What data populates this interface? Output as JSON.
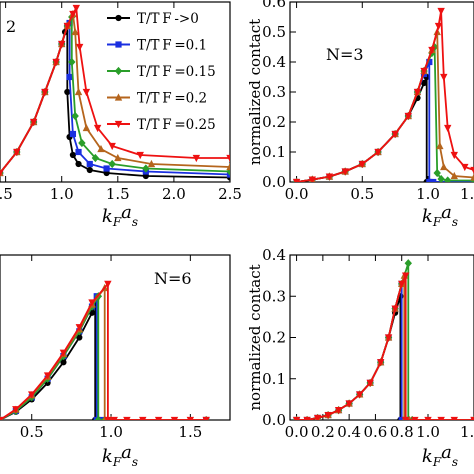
{
  "legend": {
    "entries": [
      {
        "label": "T/T F ->0",
        "color": "#000000",
        "marker": "circle"
      },
      {
        "label": "T/T F =0.1",
        "color": "#1a2fe0",
        "marker": "square"
      },
      {
        "label": "T/T F =0.15",
        "color": "#2a9e2a",
        "marker": "diamond"
      },
      {
        "label": "T/T F =0.2",
        "color": "#b5651d",
        "marker": "triangle-up"
      },
      {
        "label": "T/T F =0.25",
        "color": "#ee1111",
        "marker": "triangle-down"
      }
    ]
  },
  "chart_data": [
    {
      "id": "panel-top-left",
      "type": "line",
      "panel_label": "2",
      "xlabel": "k_F a_s",
      "ylabel": "",
      "xlim": [
        0.45,
        2.5
      ],
      "ylim": [
        0.0,
        0.6
      ],
      "xticks": [
        0.5,
        1.0,
        1.5,
        2.0,
        2.5
      ],
      "xtick_labels": [
        ".5",
        "1.0",
        "1.5",
        "2.0",
        "2.5"
      ],
      "series": [
        {
          "color": "#000000",
          "marker": "circle",
          "x": [
            0.45,
            0.6,
            0.75,
            0.85,
            0.95,
            1.0,
            1.03,
            1.05,
            1.05,
            1.07,
            1.1,
            1.15,
            1.25,
            1.4,
            1.75,
            2.5
          ],
          "y": [
            0.03,
            0.1,
            0.2,
            0.3,
            0.4,
            0.46,
            0.5,
            0.52,
            0.3,
            0.15,
            0.09,
            0.06,
            0.04,
            0.03,
            0.02,
            0.015
          ]
        },
        {
          "color": "#1a2fe0",
          "marker": "square",
          "x": [
            0.45,
            0.6,
            0.75,
            0.85,
            0.95,
            1.0,
            1.05,
            1.07,
            1.07,
            1.1,
            1.15,
            1.25,
            1.4,
            1.75,
            2.5
          ],
          "y": [
            0.03,
            0.1,
            0.2,
            0.3,
            0.4,
            0.46,
            0.52,
            0.53,
            0.35,
            0.16,
            0.1,
            0.06,
            0.045,
            0.035,
            0.025
          ]
        },
        {
          "color": "#2a9e2a",
          "marker": "diamond",
          "x": [
            0.45,
            0.6,
            0.75,
            0.85,
            0.95,
            1.0,
            1.05,
            1.09,
            1.09,
            1.12,
            1.18,
            1.3,
            1.45,
            1.75,
            2.5
          ],
          "y": [
            0.03,
            0.1,
            0.2,
            0.3,
            0.4,
            0.46,
            0.52,
            0.55,
            0.4,
            0.22,
            0.13,
            0.08,
            0.06,
            0.045,
            0.035
          ]
        },
        {
          "color": "#b5651d",
          "marker": "triangle-up",
          "x": [
            0.45,
            0.6,
            0.75,
            0.85,
            0.95,
            1.0,
            1.05,
            1.1,
            1.12,
            1.15,
            1.22,
            1.35,
            1.5,
            1.8,
            2.5
          ],
          "y": [
            0.03,
            0.1,
            0.2,
            0.3,
            0.4,
            0.46,
            0.52,
            0.56,
            0.5,
            0.3,
            0.18,
            0.11,
            0.08,
            0.06,
            0.05
          ]
        },
        {
          "color": "#ee1111",
          "marker": "triangle-down",
          "x": [
            0.45,
            0.6,
            0.75,
            0.85,
            0.95,
            1.0,
            1.05,
            1.1,
            1.13,
            1.16,
            1.22,
            1.32,
            1.45,
            1.7,
            2.2,
            2.5
          ],
          "y": [
            0.03,
            0.1,
            0.2,
            0.3,
            0.4,
            0.46,
            0.52,
            0.56,
            0.58,
            0.45,
            0.3,
            0.18,
            0.12,
            0.09,
            0.08,
            0.08
          ]
        }
      ]
    },
    {
      "id": "panel-top-right",
      "type": "line",
      "panel_label": "N=3",
      "xlabel": "k_F a_s",
      "ylabel": "normalized contact",
      "xlim": [
        -0.05,
        1.35
      ],
      "ylim": [
        0.0,
        0.6
      ],
      "xticks": [
        0.0,
        0.5,
        1.0
      ],
      "xtick_labels": [
        "0.0",
        "0.5",
        "1.0"
      ],
      "extra_tick_text": "1.",
      "yticks": [
        0.0,
        0.1,
        0.2,
        0.3,
        0.4,
        0.5,
        0.6
      ],
      "ytick_labels": [
        "0.0",
        "0.1",
        "0.2",
        "0.3",
        "0.4",
        "0.5",
        "0.6"
      ],
      "series": [
        {
          "color": "#000000",
          "marker": "circle",
          "x": [
            0.0,
            0.12,
            0.25,
            0.37,
            0.5,
            0.62,
            0.75,
            0.85,
            0.92,
            0.97,
            0.99,
            0.99,
            1.02,
            1.35
          ],
          "y": [
            0.0,
            0.008,
            0.018,
            0.035,
            0.06,
            0.1,
            0.16,
            0.22,
            0.28,
            0.33,
            0.35,
            0.0,
            0.0,
            0.0
          ]
        },
        {
          "color": "#1a2fe0",
          "marker": "square",
          "x": [
            0.0,
            0.12,
            0.25,
            0.37,
            0.5,
            0.62,
            0.75,
            0.85,
            0.92,
            0.97,
            1.01,
            1.01,
            1.04,
            1.35
          ],
          "y": [
            0.0,
            0.008,
            0.018,
            0.035,
            0.06,
            0.1,
            0.16,
            0.22,
            0.3,
            0.36,
            0.4,
            0.0,
            0.0,
            0.0
          ]
        },
        {
          "color": "#2a9e2a",
          "marker": "diamond",
          "x": [
            0.0,
            0.12,
            0.25,
            0.37,
            0.5,
            0.62,
            0.75,
            0.85,
            0.92,
            0.97,
            1.03,
            1.05,
            1.07,
            1.1,
            1.15,
            1.35
          ],
          "y": [
            0.0,
            0.008,
            0.018,
            0.035,
            0.06,
            0.1,
            0.16,
            0.22,
            0.3,
            0.37,
            0.43,
            0.45,
            0.03,
            0.01,
            0.005,
            0.005
          ]
        },
        {
          "color": "#b5651d",
          "marker": "triangle-up",
          "x": [
            0.0,
            0.12,
            0.25,
            0.37,
            0.5,
            0.62,
            0.75,
            0.85,
            0.92,
            0.97,
            1.03,
            1.07,
            1.09,
            1.12,
            1.2,
            1.35
          ],
          "y": [
            0.0,
            0.008,
            0.018,
            0.035,
            0.06,
            0.1,
            0.16,
            0.22,
            0.3,
            0.37,
            0.44,
            0.5,
            0.12,
            0.05,
            0.02,
            0.015
          ]
        },
        {
          "color": "#ee1111",
          "marker": "triangle-down",
          "x": [
            0.0,
            0.12,
            0.25,
            0.37,
            0.5,
            0.62,
            0.75,
            0.85,
            0.92,
            0.97,
            1.03,
            1.08,
            1.1,
            1.12,
            1.15,
            1.2,
            1.28,
            1.35
          ],
          "y": [
            0.0,
            0.008,
            0.018,
            0.035,
            0.06,
            0.1,
            0.16,
            0.22,
            0.3,
            0.37,
            0.44,
            0.52,
            0.57,
            0.35,
            0.18,
            0.09,
            0.05,
            0.04
          ]
        }
      ]
    },
    {
      "id": "panel-bottom-left",
      "type": "line",
      "panel_label": "N=6",
      "xlabel": "k_F a_s",
      "ylabel": "",
      "xlim": [
        0.3,
        1.75
      ],
      "ylim": [
        0.0,
        0.4
      ],
      "xticks": [
        0.5,
        1.0,
        1.5
      ],
      "xtick_labels": [
        "0.5",
        "1.0",
        "1.5"
      ],
      "series": [
        {
          "color": "#000000",
          "marker": "circle",
          "x": [
            0.3,
            0.4,
            0.5,
            0.6,
            0.7,
            0.8,
            0.88,
            0.9,
            0.9,
            0.93,
            1.0,
            1.6
          ],
          "y": [
            0.0,
            0.02,
            0.05,
            0.09,
            0.14,
            0.2,
            0.26,
            0.28,
            0.0,
            0.0,
            0.0,
            0.0
          ]
        },
        {
          "color": "#1a2fe0",
          "marker": "square",
          "x": [
            0.3,
            0.4,
            0.5,
            0.6,
            0.7,
            0.8,
            0.88,
            0.91,
            0.91,
            0.95,
            1.6
          ],
          "y": [
            0.0,
            0.022,
            0.055,
            0.1,
            0.155,
            0.215,
            0.275,
            0.3,
            0.0,
            0.0,
            0.0
          ]
        },
        {
          "color": "#2a9e2a",
          "marker": "diamond",
          "x": [
            0.3,
            0.4,
            0.5,
            0.6,
            0.7,
            0.8,
            0.88,
            0.92,
            0.92,
            0.96,
            1.6
          ],
          "y": [
            0.0,
            0.022,
            0.055,
            0.1,
            0.155,
            0.215,
            0.275,
            0.3,
            0.0,
            0.0,
            0.0
          ]
        },
        {
          "color": "#b5651d",
          "marker": "triangle-up",
          "x": [
            0.3,
            0.4,
            0.5,
            0.6,
            0.7,
            0.8,
            0.88,
            0.96,
            0.96,
            1.0,
            1.6
          ],
          "y": [
            0.0,
            0.025,
            0.06,
            0.105,
            0.16,
            0.22,
            0.28,
            0.32,
            0.0,
            0.0,
            0.0
          ]
        },
        {
          "color": "#ee1111",
          "marker": "triangle-down",
          "x": [
            0.3,
            0.4,
            0.5,
            0.6,
            0.7,
            0.8,
            0.88,
            0.98,
            0.98,
            1.02,
            1.1,
            1.2,
            1.3,
            1.4,
            1.5,
            1.6
          ],
          "y": [
            0.0,
            0.026,
            0.062,
            0.108,
            0.163,
            0.225,
            0.285,
            0.33,
            0.0,
            0.0,
            0.0,
            0.0,
            0.0,
            0.0,
            0.0,
            0.0
          ]
        }
      ]
    },
    {
      "id": "panel-bottom-right",
      "type": "line",
      "panel_label": "",
      "xlabel": "k_F a_s",
      "ylabel": "normalized contact",
      "xlim": [
        -0.05,
        1.35
      ],
      "ylim": [
        0.0,
        0.4
      ],
      "xticks": [
        0.0,
        0.2,
        0.4,
        0.6,
        0.8,
        1.0
      ],
      "xtick_labels": [
        "0.0",
        "0.2",
        "0.4",
        "0.6",
        "0.8",
        "1.0"
      ],
      "extra_tick_text": "1.",
      "yticks": [
        0.0,
        0.1,
        0.2,
        0.3,
        0.4
      ],
      "ytick_labels": [
        "0.0",
        "0.1",
        "0.2",
        "0.3",
        "0.4"
      ],
      "series": [
        {
          "color": "#000000",
          "marker": "circle",
          "x": [
            0.0,
            0.08,
            0.16,
            0.24,
            0.32,
            0.4,
            0.48,
            0.56,
            0.64,
            0.7,
            0.75,
            0.79,
            0.79,
            0.82,
            1.35
          ],
          "y": [
            0.0,
            0.0,
            0.005,
            0.012,
            0.024,
            0.04,
            0.062,
            0.09,
            0.14,
            0.2,
            0.26,
            0.3,
            0.0,
            0.0,
            0.0
          ]
        },
        {
          "color": "#1a2fe0",
          "marker": "square",
          "x": [
            0.0,
            0.08,
            0.16,
            0.24,
            0.32,
            0.4,
            0.48,
            0.56,
            0.64,
            0.7,
            0.75,
            0.8,
            0.8,
            0.83,
            1.35
          ],
          "y": [
            0.0,
            0.0,
            0.005,
            0.012,
            0.024,
            0.04,
            0.062,
            0.09,
            0.14,
            0.2,
            0.27,
            0.33,
            0.0,
            0.0,
            0.0
          ]
        },
        {
          "color": "#2a9e2a",
          "marker": "diamond",
          "x": [
            0.0,
            0.08,
            0.16,
            0.24,
            0.32,
            0.4,
            0.48,
            0.56,
            0.64,
            0.7,
            0.75,
            0.8,
            0.85,
            0.85,
            0.88,
            1.35
          ],
          "y": [
            0.0,
            0.0,
            0.005,
            0.012,
            0.024,
            0.04,
            0.062,
            0.09,
            0.14,
            0.2,
            0.27,
            0.33,
            0.38,
            0.0,
            0.0,
            0.0
          ]
        },
        {
          "color": "#b5651d",
          "marker": "triangle-up",
          "x": [
            0.0,
            0.08,
            0.16,
            0.24,
            0.32,
            0.4,
            0.48,
            0.56,
            0.64,
            0.7,
            0.75,
            0.8,
            0.82,
            0.82,
            0.86,
            1.35
          ],
          "y": [
            0.0,
            0.0,
            0.005,
            0.012,
            0.024,
            0.04,
            0.062,
            0.09,
            0.14,
            0.2,
            0.27,
            0.33,
            0.35,
            0.0,
            0.0,
            0.0
          ]
        },
        {
          "color": "#ee1111",
          "marker": "triangle-down",
          "x": [
            0.0,
            0.08,
            0.16,
            0.24,
            0.32,
            0.4,
            0.48,
            0.56,
            0.64,
            0.7,
            0.75,
            0.8,
            0.83,
            0.83,
            0.9,
            1.0,
            1.1,
            1.2,
            1.35
          ],
          "y": [
            0.0,
            0.0,
            0.005,
            0.012,
            0.024,
            0.04,
            0.062,
            0.09,
            0.14,
            0.2,
            0.27,
            0.33,
            0.35,
            0.0,
            0.0,
            0.0,
            0.0,
            0.0,
            0.0
          ]
        }
      ]
    }
  ]
}
